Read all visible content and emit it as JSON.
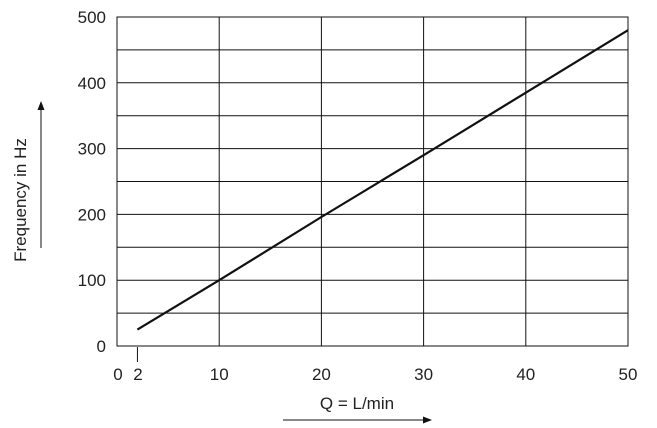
{
  "chart_data": {
    "type": "line",
    "title": "",
    "xlabel": "Q = L/min",
    "ylabel": "Frequency in Hz",
    "xlim": [
      0,
      50
    ],
    "ylim": [
      0,
      500
    ],
    "x_ticks": [
      0,
      2,
      10,
      20,
      30,
      40,
      50
    ],
    "x_gridlines": [
      10,
      20,
      30,
      40
    ],
    "y_ticks": [
      0,
      100,
      200,
      300,
      400,
      500
    ],
    "y_gridlines": [
      50,
      100,
      150,
      200,
      250,
      300,
      350,
      400,
      450
    ],
    "grid": true,
    "axis_arrows": true,
    "series": [
      {
        "points": [
          {
            "x": 2,
            "y": 25
          },
          {
            "x": 10,
            "y": 100
          },
          {
            "x": 20,
            "y": 196
          },
          {
            "x": 30,
            "y": 290
          },
          {
            "x": 40,
            "y": 385
          },
          {
            "x": 50,
            "y": 480
          }
        ]
      }
    ],
    "colors": {
      "line": "#111111",
      "grid": "#111111",
      "frame": "#111111",
      "text": "#222222"
    }
  }
}
